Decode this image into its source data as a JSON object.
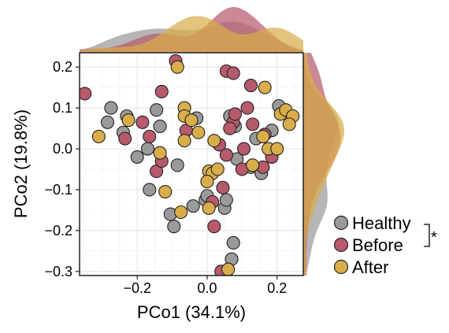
{
  "chart_data": {
    "type": "scatter",
    "xlabel": "PCo1 (34.1%)",
    "ylabel": "PCo2 (19.8%)",
    "xlim": [
      -0.365,
      0.275
    ],
    "ylim": [
      -0.31,
      0.235
    ],
    "x_ticks": [
      -0.2,
      0.0,
      0.2
    ],
    "x_tick_labels": [
      "−0.2",
      "0.0",
      "0.2"
    ],
    "y_ticks": [
      -0.3,
      -0.2,
      -0.1,
      0.0,
      0.1,
      0.2
    ],
    "y_tick_labels": [
      "−0.3",
      "−0.2",
      "−0.1",
      "0.0",
      "0.1",
      "0.2"
    ],
    "grid": true,
    "marginal_densities": true,
    "legend_position": "bottom-right",
    "significance_mark": "*",
    "significance_groups": [
      "Healthy",
      "Before"
    ],
    "series": [
      {
        "name": "Healthy",
        "color": "#9a9a9a",
        "points": [
          [
            -0.275,
            0.1
          ],
          [
            -0.285,
            0.065
          ],
          [
            -0.24,
            0.04
          ],
          [
            -0.23,
            0.08
          ],
          [
            -0.17,
            0.0
          ],
          [
            -0.2,
            -0.02
          ],
          [
            -0.145,
            0.095
          ],
          [
            -0.135,
            0.055
          ],
          [
            -0.085,
            -0.04
          ],
          [
            -0.165,
            -0.1
          ],
          [
            -0.105,
            -0.16
          ],
          [
            -0.095,
            -0.19
          ],
          [
            -0.04,
            -0.14
          ],
          [
            -0.03,
            0.075
          ],
          [
            -0.005,
            -0.125
          ],
          [
            0.0,
            -0.115
          ],
          [
            0.05,
            -0.145
          ],
          [
            0.055,
            -0.125
          ],
          [
            0.075,
            -0.23
          ],
          [
            0.07,
            -0.27
          ],
          [
            0.065,
            0.08
          ],
          [
            0.08,
            0.055
          ],
          [
            0.085,
            -0.025
          ],
          [
            0.125,
            -0.045
          ],
          [
            0.14,
            0.025
          ],
          [
            0.155,
            -0.06
          ],
          [
            0.185,
            0.045
          ],
          [
            0.205,
            0.105
          ]
        ]
      },
      {
        "name": "Before",
        "color": "#b75a6c",
        "points": [
          [
            -0.35,
            0.135
          ],
          [
            -0.09,
            0.215
          ],
          [
            -0.13,
            0.14
          ],
          [
            -0.235,
            0.025
          ],
          [
            -0.185,
            0.065
          ],
          [
            -0.165,
            0.03
          ],
          [
            -0.145,
            -0.055
          ],
          [
            -0.13,
            -0.03
          ],
          [
            -0.06,
            0.045
          ],
          [
            0.055,
            0.19
          ],
          [
            0.075,
            0.185
          ],
          [
            0.125,
            0.155
          ],
          [
            0.035,
            0.01
          ],
          [
            0.055,
            -0.015
          ],
          [
            0.075,
            0.065
          ],
          [
            0.08,
            0.085
          ],
          [
            0.065,
            0.05
          ],
          [
            0.105,
            0.0
          ],
          [
            0.1,
            -0.05
          ],
          [
            0.16,
            -0.045
          ],
          [
            0.115,
            0.1
          ],
          [
            0.13,
            0.06
          ],
          [
            0.165,
            0.035
          ],
          [
            0.185,
            -0.02
          ],
          [
            0.015,
            -0.13
          ],
          [
            0.02,
            -0.19
          ],
          [
            0.045,
            -0.095
          ],
          [
            0.04,
            -0.3
          ]
        ]
      },
      {
        "name": "After",
        "color": "#d9ad4a",
        "points": [
          [
            -0.31,
            0.03
          ],
          [
            -0.225,
            0.07
          ],
          [
            -0.135,
            -0.01
          ],
          [
            -0.12,
            -0.105
          ],
          [
            -0.075,
            -0.155
          ],
          [
            -0.085,
            0.2
          ],
          [
            -0.065,
            0.1
          ],
          [
            -0.065,
            0.08
          ],
          [
            -0.045,
            0.07
          ],
          [
            -0.065,
            0.02
          ],
          [
            -0.025,
            0.04
          ],
          [
            0.02,
            0.02
          ],
          [
            0.005,
            -0.055
          ],
          [
            0.015,
            -0.06
          ],
          [
            0.03,
            -0.05
          ],
          [
            0.0,
            -0.08
          ],
          [
            0.005,
            -0.145
          ],
          [
            0.06,
            -0.295
          ],
          [
            0.13,
            -0.04
          ],
          [
            0.16,
            0.03
          ],
          [
            0.165,
            0.15
          ],
          [
            0.21,
            0.085
          ],
          [
            0.225,
            0.095
          ],
          [
            0.245,
            0.08
          ],
          [
            0.235,
            0.06
          ],
          [
            0.175,
            0.0
          ],
          [
            0.2,
            0.0
          ]
        ]
      }
    ]
  }
}
